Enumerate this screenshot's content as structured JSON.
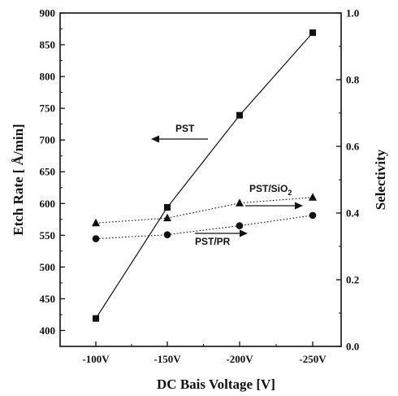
{
  "chart_data": {
    "type": "line",
    "title": "",
    "xlabel": "DC Bais Voltage [V]",
    "ylabel_left_prefix": "Etch Rate [ ",
    "ylabel_left_unit": "Å/min",
    "ylabel_left_suffix": "]",
    "ylabel_right": "Selectivity",
    "categories": [
      "-100V",
      "-150V",
      "-200V",
      "-250V"
    ],
    "y_left_lim": [
      375,
      900
    ],
    "y_left_ticks": [
      400,
      450,
      500,
      550,
      600,
      650,
      700,
      750,
      800,
      850,
      900
    ],
    "y_right_lim": [
      0.0,
      1.0
    ],
    "y_right_ticks": [
      "0.0",
      "0.2",
      "0.4",
      "0.6",
      "0.8",
      "1.0"
    ],
    "grid": false,
    "series": [
      {
        "name": "PST",
        "axis": "left",
        "marker": "square",
        "style": "solid",
        "values": [
          419,
          594,
          739,
          869
        ]
      },
      {
        "name": "PST/SiO2",
        "axis": "right",
        "marker": "triangle",
        "style": "dotted",
        "values": [
          0.37,
          0.385,
          0.43,
          0.447
        ]
      },
      {
        "name": "PST/PR",
        "axis": "right",
        "marker": "circle",
        "style": "dotted",
        "values": [
          0.323,
          0.335,
          0.362,
          0.393
        ]
      }
    ],
    "annotations": {
      "pst": "PST",
      "pst_sio2_prefix": "PST/SiO",
      "pst_sio2_sub": "2",
      "pst_pr": "PST/PR"
    }
  }
}
